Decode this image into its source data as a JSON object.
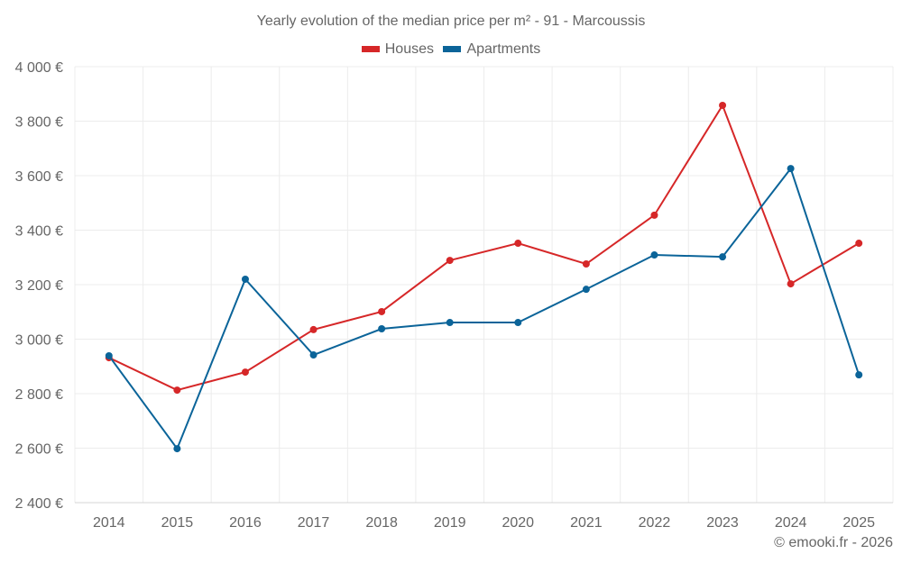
{
  "chart_data": {
    "type": "line",
    "title": "Yearly evolution of the median price per m² - 91 - Marcoussis",
    "xlabel": "",
    "ylabel": "",
    "x": [
      "2014",
      "2015",
      "2016",
      "2017",
      "2018",
      "2019",
      "2020",
      "2021",
      "2022",
      "2023",
      "2024",
      "2025"
    ],
    "ylim": [
      2400,
      4000
    ],
    "yticks": [
      2400,
      2600,
      2800,
      3000,
      3200,
      3400,
      3600,
      3800,
      4000
    ],
    "ytick_labels": [
      "2 400 €",
      "2 600 €",
      "2 800 €",
      "3 000 €",
      "3 200 €",
      "3 400 €",
      "3 600 €",
      "3 800 €",
      "4 000 €"
    ],
    "grid": true,
    "legend_position": "top-center",
    "series": [
      {
        "name": "Houses",
        "color": "#d62728",
        "values": [
          2932,
          2813,
          2879,
          3035,
          3101,
          3289,
          3352,
          3276,
          3455,
          3858,
          3203,
          3352
        ]
      },
      {
        "name": "Apartments",
        "color": "#0b6499",
        "values": [
          2939,
          2598,
          3220,
          2942,
          3038,
          3061,
          3061,
          3183,
          3309,
          3302,
          3626,
          2869
        ]
      }
    ]
  },
  "footer": "© emooki.fr - 2026"
}
